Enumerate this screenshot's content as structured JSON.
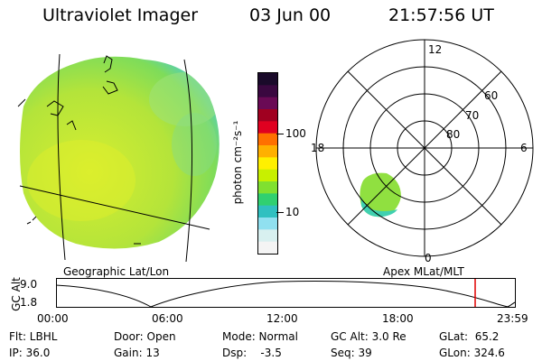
{
  "header": {
    "instrument": "Ultraviolet Imager",
    "date": "03 Jun 00",
    "time": "21:57:56 UT"
  },
  "colorbar": {
    "unit_label": "photon cm⁻²s⁻¹",
    "tick_100": "100",
    "tick_10": "10",
    "colors_top_to_bottom": [
      "#1a0a2a",
      "#3a0840",
      "#6a0a55",
      "#a00020",
      "#e00020",
      "#ff7000",
      "#ffb000",
      "#fff000",
      "#c8f000",
      "#80e030",
      "#30d070",
      "#30c0c0",
      "#90e0f0",
      "#d8f0f0",
      "#f4f4f4"
    ]
  },
  "left_panel": {
    "label": "Geographic Lat/Lon"
  },
  "right_panel": {
    "label": "Apex MLat/MLT",
    "mlt_labels": {
      "top": "12",
      "left": "18",
      "right": "6",
      "bottom": "0"
    },
    "mlat_labels": [
      "60",
      "70",
      "80"
    ]
  },
  "altitude_plot": {
    "axis_label": "GC Alt",
    "y_ticks": [
      "9.0",
      "1.8"
    ],
    "x_ticks": [
      "00:00",
      "06:00",
      "12:00",
      "18:00",
      "23:59"
    ],
    "marker_color": "#e00000"
  },
  "info": {
    "flt": "Flt: LBHL",
    "ip": "IP: 36.0",
    "door": "Door: Open",
    "gain": "Gain: 13",
    "mode": "Mode: Normal",
    "dsp": "Dsp:    -3.5",
    "gc_alt": "GC Alt: 3.0 Re",
    "seq": "Seq: 39",
    "glat": "GLat:  65.2",
    "glon": "GLon: 324.6"
  }
}
